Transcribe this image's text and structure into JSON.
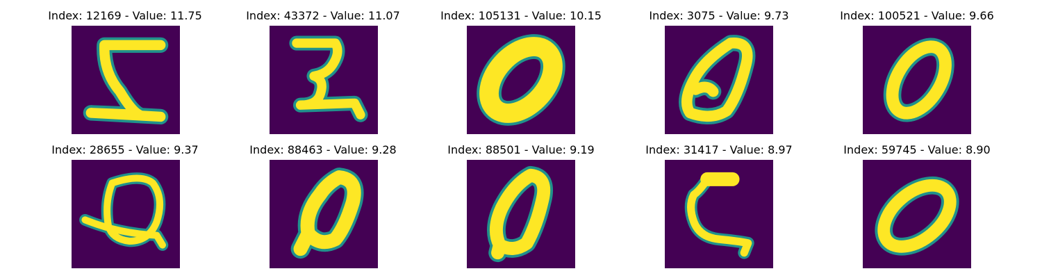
{
  "figure": {
    "background_color": "#440154",
    "stroke_color": "#fde725",
    "edge_color": "#21918c",
    "panels": [
      {
        "title": "Index: 12169 - Value: 11.75",
        "digit": "5"
      },
      {
        "title": "Index: 43372 - Value: 11.07",
        "digit": "3"
      },
      {
        "title": "Index: 105131 - Value: 10.15",
        "digit": "0"
      },
      {
        "title": "Index: 3075 - Value: 9.73",
        "digit": "0"
      },
      {
        "title": "Index: 100521 - Value: 9.66",
        "digit": "0"
      },
      {
        "title": "Index: 28655 - Value: 9.37",
        "digit": "0"
      },
      {
        "title": "Index: 88463 - Value: 9.28",
        "digit": "0"
      },
      {
        "title": "Index: 88501 - Value: 9.19",
        "digit": "0"
      },
      {
        "title": "Index: 31417 - Value: 8.97",
        "digit": "2"
      },
      {
        "title": "Index: 59745 - Value: 8.90",
        "digit": "0"
      }
    ]
  }
}
